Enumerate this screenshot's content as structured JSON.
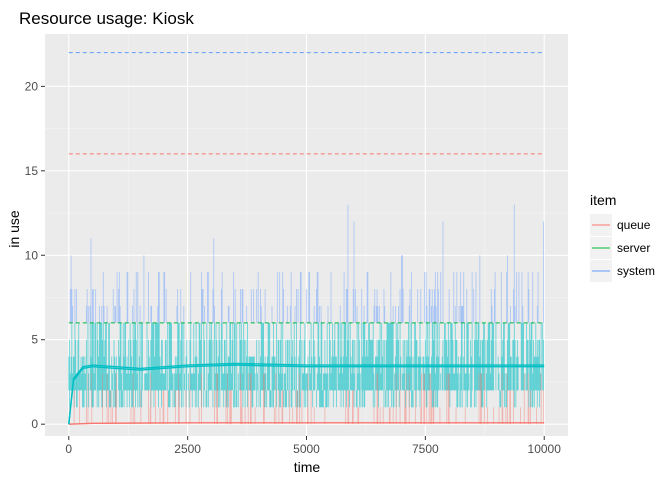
{
  "chart_data": {
    "type": "line",
    "title": "Resource usage: Kiosk",
    "xlabel": "time",
    "ylabel": "in use",
    "xlim": [
      -500,
      10500
    ],
    "ylim": [
      -0.7,
      23.1
    ],
    "x_ticks": [
      0,
      2500,
      5000,
      7500,
      10000
    ],
    "x_tick_labels": [
      "0",
      "2500",
      "5000",
      "7500",
      "10000"
    ],
    "y_ticks": [
      0,
      5,
      10,
      15,
      20
    ],
    "y_tick_labels": [
      "0",
      "5",
      "10",
      "15",
      "20"
    ],
    "grid": true,
    "legend": {
      "title": "item",
      "placement": "right",
      "entries": [
        "queue",
        "server",
        "system"
      ]
    },
    "colors": {
      "queue": "#F8766D",
      "server": "#00BA38",
      "system": "#619CFF",
      "overlap": "#00BFC4"
    },
    "series": [
      {
        "name": "queue",
        "capacity": 16,
        "instantaneous_range": [
          0,
          3
        ],
        "mean_line": {
          "x": [
            0,
            500,
            2500,
            5000,
            7500,
            10000
          ],
          "values": [
            0,
            0.05,
            0.08,
            0.08,
            0.08,
            0.08
          ]
        }
      },
      {
        "name": "server",
        "capacity": 6,
        "instantaneous_range": [
          1,
          6
        ],
        "mean_line": {
          "x": [
            0,
            100,
            300,
            500,
            1000,
            1500,
            2500,
            3500,
            5000,
            7500,
            10000
          ],
          "values": [
            0,
            2.6,
            3.3,
            3.4,
            3.3,
            3.2,
            3.4,
            3.5,
            3.4,
            3.4,
            3.4
          ]
        }
      },
      {
        "name": "system",
        "capacity": 22,
        "instantaneous_range": [
          1,
          13
        ],
        "mean_line": {
          "x": [
            0,
            100,
            300,
            500,
            1000,
            1500,
            2500,
            3500,
            5000,
            7500,
            10000
          ],
          "values": [
            0,
            2.7,
            3.4,
            3.5,
            3.4,
            3.3,
            3.5,
            3.6,
            3.5,
            3.5,
            3.5
          ]
        }
      }
    ]
  }
}
